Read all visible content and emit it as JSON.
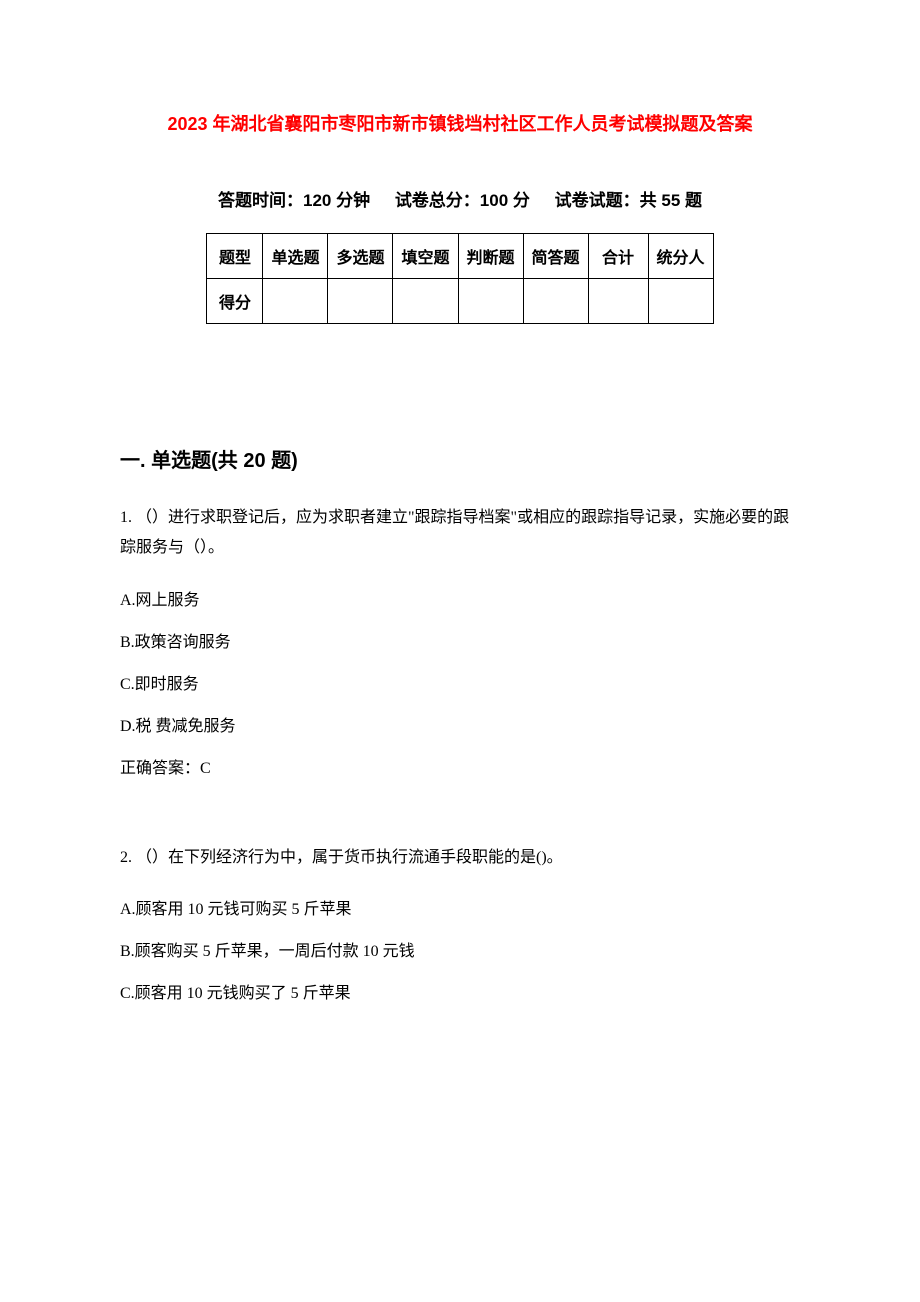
{
  "title": "2023 年湖北省襄阳市枣阳市新市镇钱垱村社区工作人员考试模拟题及答案",
  "meta": {
    "time_label": "答题时间：120 分钟",
    "total_score_label": "试卷总分：100 分",
    "question_count_label": "试卷试题：共 55 题"
  },
  "score_table": {
    "header_row_label": "题型",
    "columns": [
      "单选题",
      "多选题",
      "填空题",
      "判断题",
      "简答题",
      "合计",
      "统分人"
    ],
    "score_row_label": "得分",
    "border_color": "#000000",
    "font_size": 16
  },
  "section1": {
    "heading": "一. 单选题(共 20 题)",
    "questions": [
      {
        "number": "1.",
        "text": "（）进行求职登记后，应为求职者建立\"跟踪指导档案\"或相应的跟踪指导记录，实施必要的跟踪服务与（）。",
        "options": [
          "A.网上服务",
          "B.政策咨询服务",
          "C.即时服务",
          "D.税  费减免服务"
        ],
        "answer": "正确答案：C"
      },
      {
        "number": "2.",
        "text": "（）在下列经济行为中，属于货币执行流通手段职能的是()。",
        "options": [
          "A.顾客用 10 元钱可购买 5 斤苹果",
          "B.顾客购买 5 斤苹果，一周后付款 10 元钱",
          "C.顾客用 10 元钱购买了 5 斤苹果"
        ]
      }
    ]
  },
  "colors": {
    "title_color": "#ff0000",
    "text_color": "#000000",
    "background_color": "#ffffff"
  }
}
